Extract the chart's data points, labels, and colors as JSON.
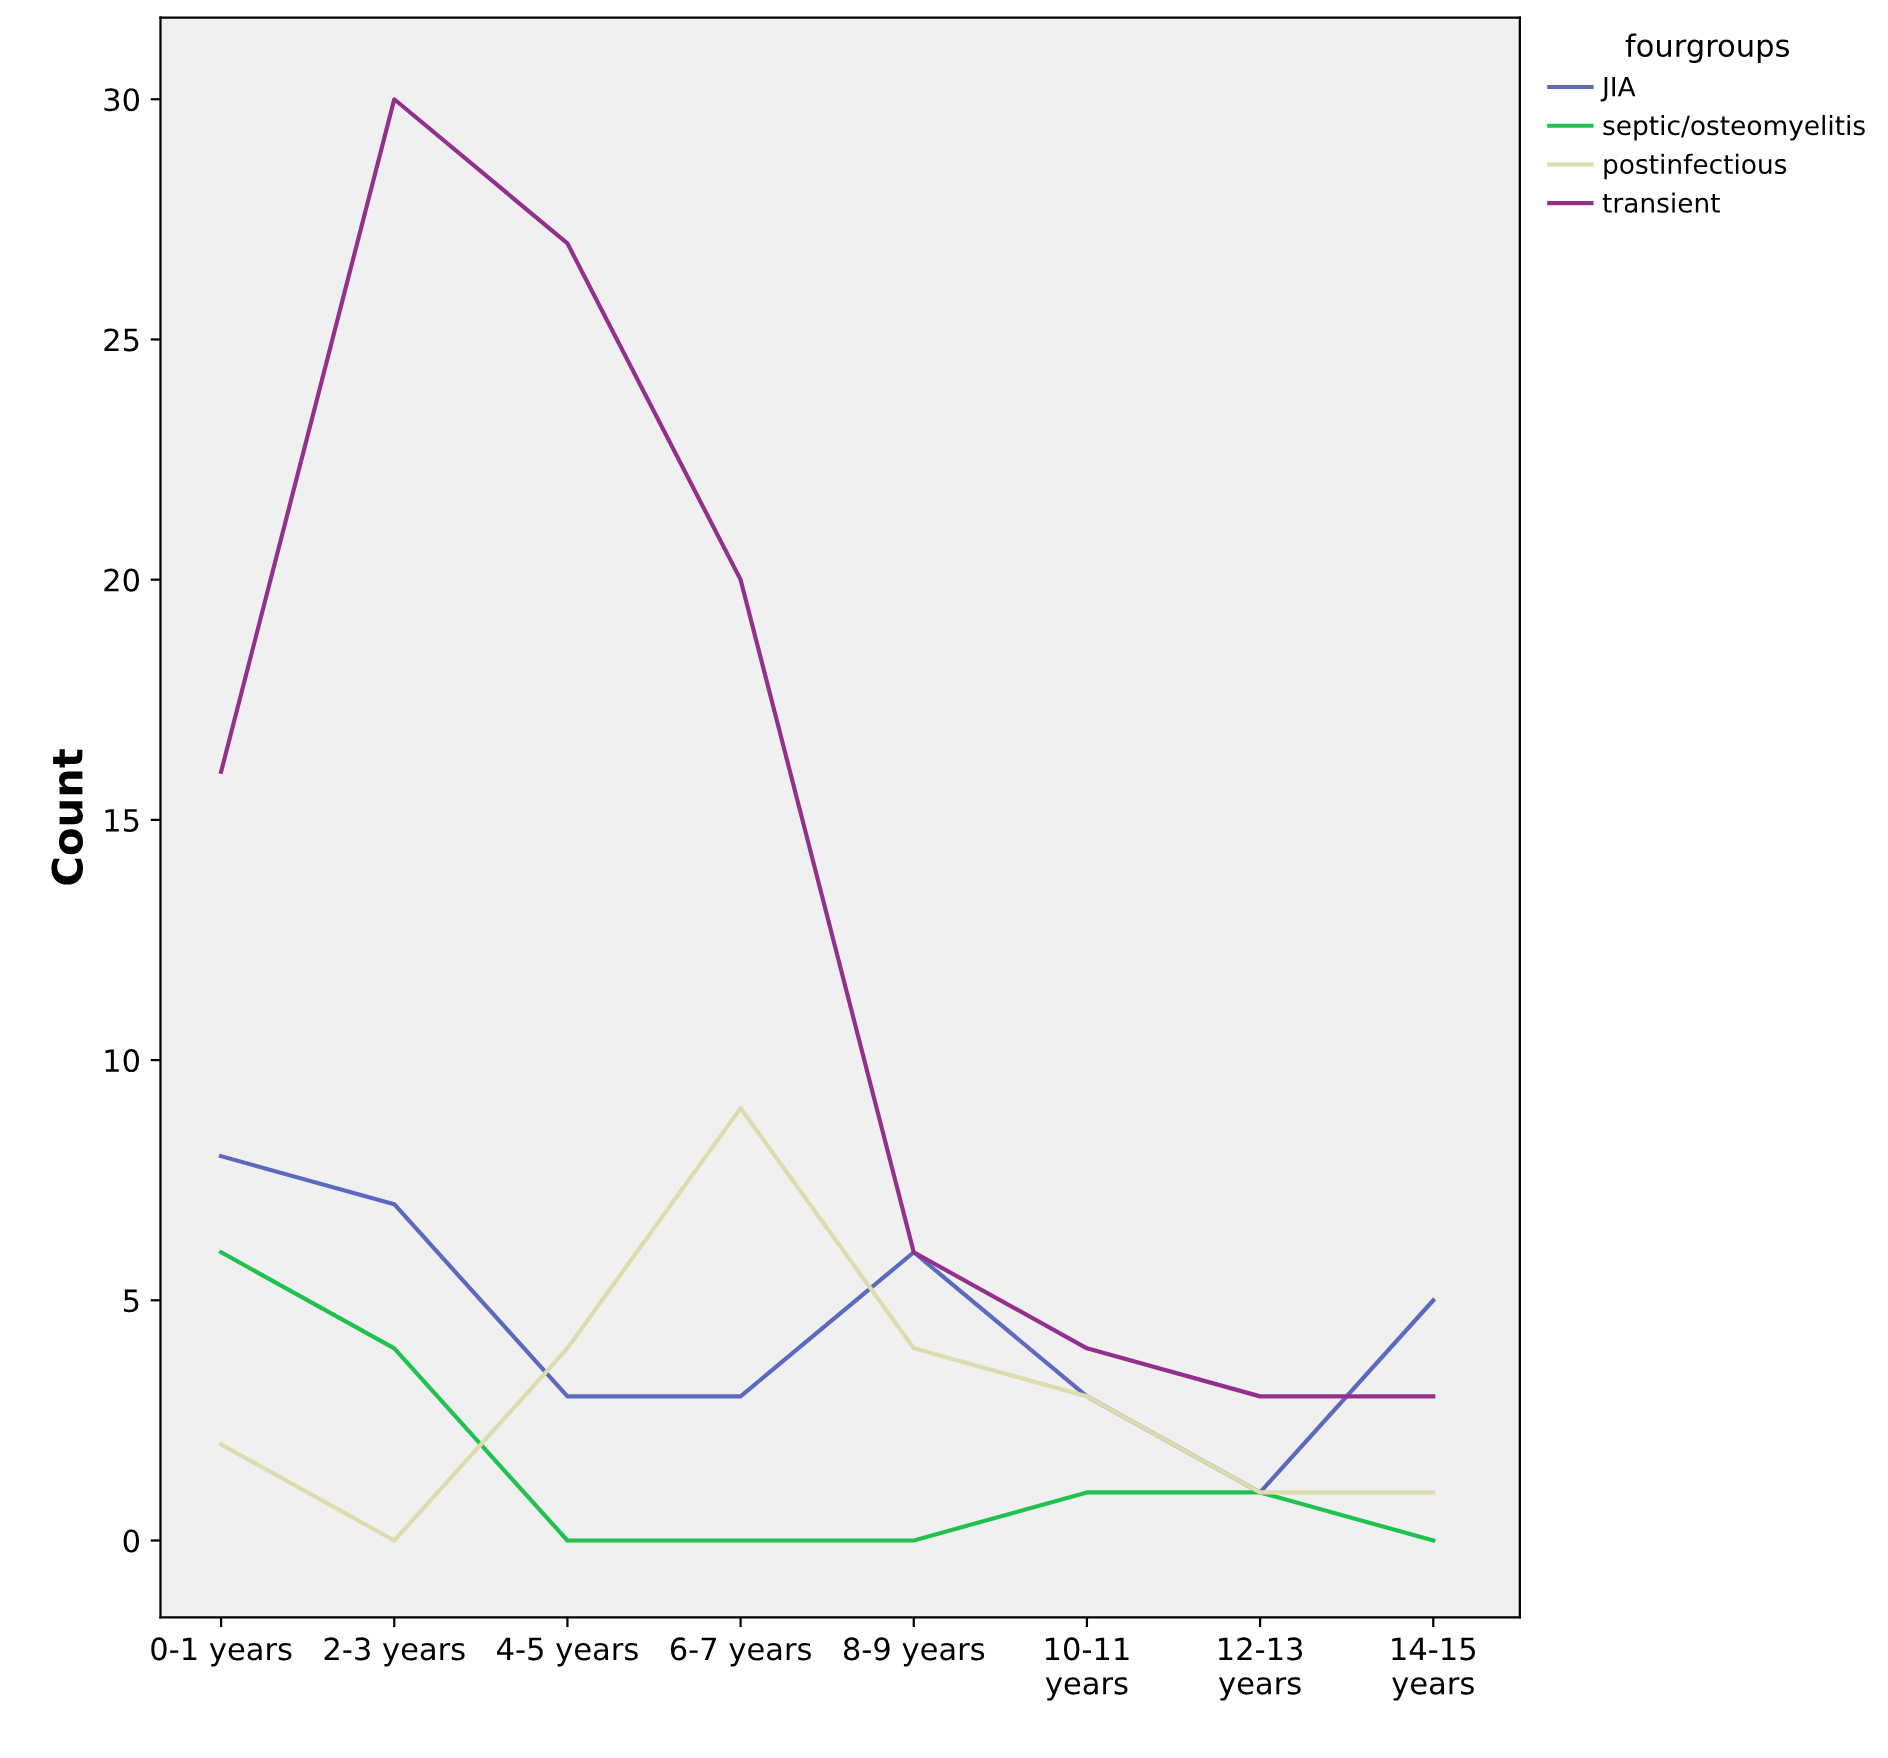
{
  "chart_data": {
    "type": "line",
    "ylabel": "Count",
    "legend_title": "fourgroups",
    "legend": "top right",
    "grid": false,
    "marker": "none",
    "line_style": "solid",
    "categories": [
      "0-1 years",
      "2-3 years",
      "4-5 years",
      "6-7 years",
      "8-9 years",
      "10-11\nyears",
      "12-13\nyears",
      "14-15\nyears"
    ],
    "ylim": [
      -1.6,
      31.7
    ],
    "yticks": [
      0,
      5,
      10,
      15,
      20,
      25,
      30
    ],
    "series": [
      {
        "name": "JIA",
        "color": "#5b6abf",
        "values": [
          8,
          7,
          3,
          3,
          6,
          3,
          1,
          5
        ]
      },
      {
        "name": "septic/osteomyelitis",
        "color": "#1fc24e",
        "values": [
          6,
          4,
          0,
          0,
          0,
          1,
          1,
          0
        ]
      },
      {
        "name": "postinfectious",
        "color": "#dcdcac",
        "values": [
          2,
          0,
          4,
          9,
          4,
          3,
          1,
          1
        ]
      },
      {
        "name": "transient",
        "color": "#93308c",
        "values": [
          16,
          30,
          27,
          20,
          6,
          4,
          3,
          3
        ]
      }
    ]
  }
}
